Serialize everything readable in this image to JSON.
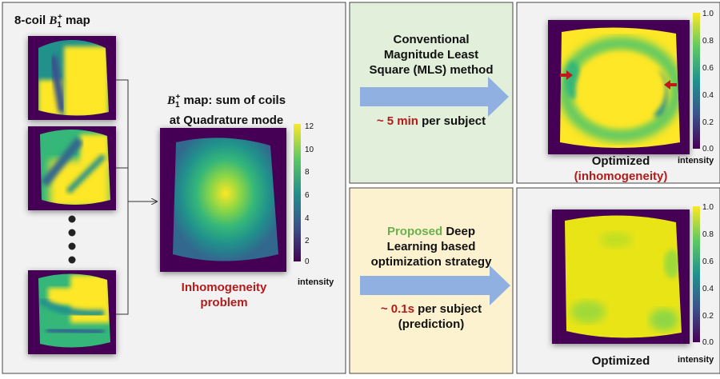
{
  "left_panel": {
    "coil_title_prefix": "8-coil ",
    "coil_title_symbol": "B",
    "coil_title_sub": "1",
    "coil_title_sup": "+",
    "coil_title_suffix": " map",
    "sum_title_symbol": "B",
    "sum_title_sub": "1",
    "sum_title_sup": "+",
    "sum_title_line1": " map: sum of coils",
    "sum_title_line2": "at Quadrature mode",
    "problem_line1": "Inhomogeneity",
    "problem_line2": "problem",
    "colorbar_ticks": [
      "12",
      "10",
      "8",
      "6",
      "4",
      "2",
      "0"
    ],
    "colorbar_label": "intensity"
  },
  "top_method": {
    "line1": "Conventional",
    "line2": "Magnitude Least",
    "line3": "Square (MLS) method",
    "time_value": "~ 5 min",
    "time_suffix": " per subject"
  },
  "bottom_method": {
    "highlight": "Proposed",
    "line1_rest": " Deep",
    "line2": "Learning based",
    "line3": "optimization strategy",
    "time_value": "~ 0.1s",
    "time_suffix": " per subject",
    "time_note": "(prediction)"
  },
  "top_result": {
    "label": "Optimized",
    "sublabel": "(inhomogeneity)",
    "colorbar_ticks": [
      "1.0",
      "0.8",
      "0.6",
      "0.4",
      "0.2",
      "0.0"
    ],
    "colorbar_label": "intensity"
  },
  "bottom_result": {
    "label": "Optimized",
    "colorbar_ticks": [
      "1.0",
      "0.8",
      "0.6",
      "0.4",
      "0.2",
      "0.0"
    ],
    "colorbar_label": "intensity"
  },
  "colors": {
    "viridis_dark": "#440154",
    "viridis_mid": "#21918c",
    "viridis_yellow": "#fde725",
    "warning_red": "#b31b1b",
    "proposed_green": "#6ab04c",
    "top_panel_bg": "#e2efda",
    "bottom_panel_bg": "#fdf2d0",
    "arrow_blue": "#8fb0e0"
  }
}
